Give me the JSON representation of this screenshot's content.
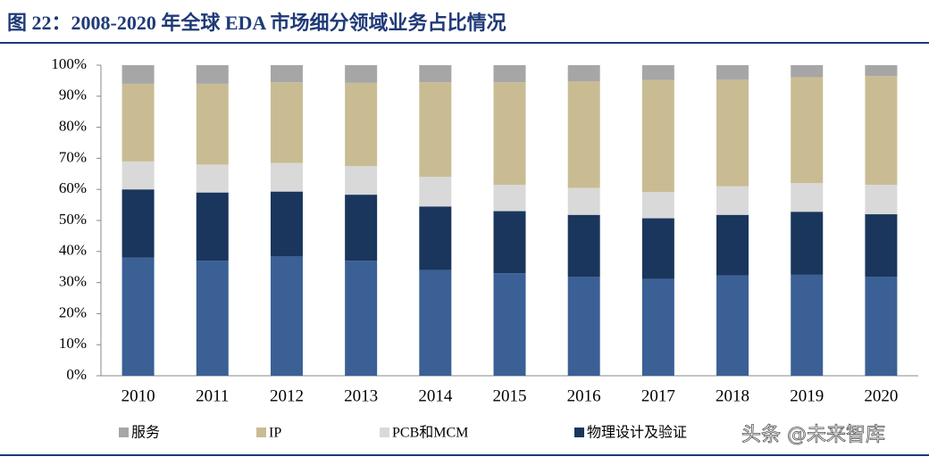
{
  "chart_data": {
    "type": "stacked_bar",
    "title": "图 22：2008-2020 年全球 EDA 市场细分领域业务占比情况",
    "categories": [
      "2010",
      "2011",
      "2012",
      "2013",
      "2014",
      "2015",
      "2016",
      "2017",
      "2018",
      "2019",
      "2020"
    ],
    "series": [
      {
        "name": null,
        "color": "#3a6096",
        "values": [
          38,
          37,
          38.5,
          37,
          34,
          33,
          31.8,
          31.2,
          32.3,
          32.5,
          31.8
        ]
      },
      {
        "name": "物理设计及验证",
        "color": "#1a365d",
        "values": [
          22,
          22,
          20.8,
          21.3,
          20.5,
          20,
          20,
          19.5,
          19.5,
          20.3,
          20.2
        ]
      },
      {
        "name": "PCB和MCM",
        "color": "#d9d9d9",
        "values": [
          9,
          9,
          9.2,
          9.2,
          9.5,
          8.5,
          8.7,
          8.5,
          9.2,
          9.2,
          9.5
        ]
      },
      {
        "name": "IP",
        "color": "#c9bc93",
        "values": [
          25,
          26,
          26,
          26.8,
          30.5,
          33,
          34.3,
          36,
          34.3,
          34.1,
          35
        ]
      },
      {
        "name": "服务",
        "color": "#a6a6a6",
        "values": [
          6,
          6,
          5.5,
          5.7,
          5.5,
          5.5,
          5.2,
          4.8,
          4.7,
          3.9,
          3.5
        ]
      }
    ],
    "ylim": [
      0,
      100
    ],
    "yticks": [
      {
        "value": 0,
        "label": "0%"
      },
      {
        "value": 10,
        "label": "10%"
      },
      {
        "value": 20,
        "label": "20%"
      },
      {
        "value": 30,
        "label": "30%"
      },
      {
        "value": 40,
        "label": "40%"
      },
      {
        "value": 50,
        "label": "50%"
      },
      {
        "value": 60,
        "label": "60%"
      },
      {
        "value": 70,
        "label": "70%"
      },
      {
        "value": 80,
        "label": "80%"
      },
      {
        "value": 90,
        "label": "90%"
      },
      {
        "value": 100,
        "label": "100%"
      }
    ],
    "grid": false,
    "watermark": "头条 @未来智库"
  }
}
